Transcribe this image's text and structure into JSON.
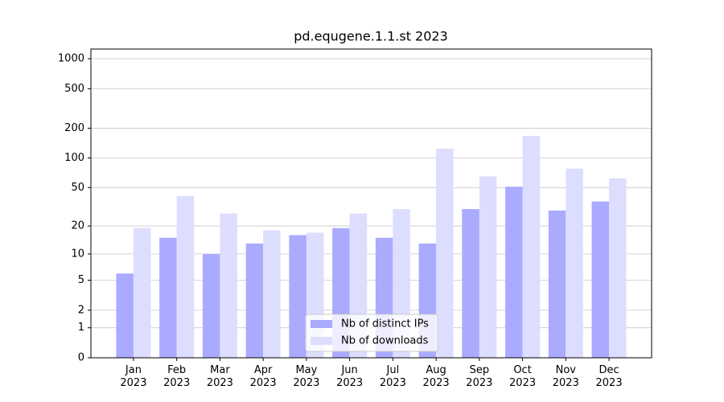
{
  "chart_data": {
    "type": "bar",
    "title": "pd.equgene.1.1.st 2023",
    "categories": [
      "Jan\n2023",
      "Feb\n2023",
      "Mar\n2023",
      "Apr\n2023",
      "May\n2023",
      "Jun\n2023",
      "Jul\n2023",
      "Aug\n2023",
      "Sep\n2023",
      "Oct\n2023",
      "Nov\n2023",
      "Dec\n2023"
    ],
    "series": [
      {
        "name": "Nb of distinct IPs",
        "color": "#aaaaff",
        "values": [
          6,
          15,
          10,
          13,
          16,
          19,
          15,
          13,
          30,
          51,
          29,
          36
        ]
      },
      {
        "name": "Nb of downloads",
        "color": "#ddddff",
        "values": [
          19,
          41,
          27,
          18,
          17,
          27,
          30,
          124,
          65,
          167,
          78,
          62
        ]
      }
    ],
    "y_scale": "symlog",
    "ylim": [
      0,
      1250
    ],
    "yticks": [
      0,
      1,
      2,
      5,
      10,
      20,
      50,
      100,
      200,
      500,
      1000
    ],
    "grid": true,
    "legend": "lower center"
  }
}
